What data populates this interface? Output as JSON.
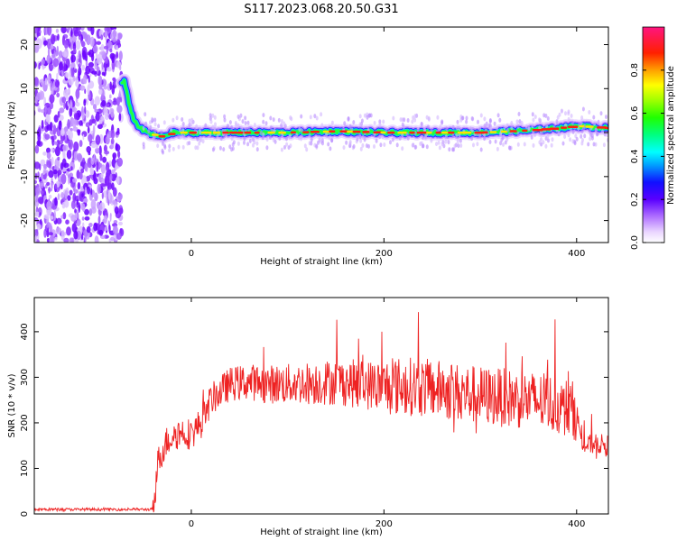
{
  "figure_title": "S117.2023.068.20.50.G31",
  "chart_data": [
    {
      "type": "heatmap",
      "title": "",
      "xlabel": "Height of straight line (km)",
      "ylabel": "Frequency (Hz)",
      "xlim": [
        -163,
        433
      ],
      "ylim": [
        -25,
        24
      ],
      "x_ticks": [
        0,
        200,
        400
      ],
      "y_ticks": [
        -20,
        -10,
        0,
        10,
        20
      ],
      "colorbar": {
        "label": "Normalized spectral amplitude",
        "range": [
          0,
          1
        ],
        "ticks": [
          0.0,
          0.2,
          0.4,
          0.6,
          0.8
        ],
        "colormap": "gist_ncar-like rainbow"
      },
      "features": {
        "noise_region_x": [
          -163,
          -72
        ],
        "signal_track": {
          "x": [
            -72,
            -70,
            -65,
            -60,
            -55,
            -50,
            -40,
            -30,
            -20,
            0,
            50,
            100,
            150,
            200,
            250,
            300,
            350,
            380,
            400,
            433
          ],
          "frequency_hz": [
            11,
            12,
            7,
            3,
            1.5,
            0.5,
            -0.5,
            -1,
            0,
            0,
            0,
            0,
            0.3,
            0,
            0,
            0,
            0.5,
            1,
            1.5,
            1
          ]
        }
      },
      "grid": false
    },
    {
      "type": "line",
      "title": "",
      "xlabel": "Height of straight line (km)",
      "ylabel": "SNR (10 * v/v)",
      "xlim": [
        -163,
        433
      ],
      "ylim": [
        0,
        475
      ],
      "x_ticks": [
        0,
        200,
        400
      ],
      "y_ticks": [
        0,
        100,
        200,
        300,
        400
      ],
      "color": "#ee2222",
      "series": [
        {
          "name": "",
          "x": [
            -163,
            -120,
            -80,
            -40,
            -38,
            -35,
            -30,
            -25,
            -20,
            -10,
            0,
            10,
            15,
            20,
            40,
            60,
            80,
            100,
            150,
            200,
            230,
            250,
            300,
            350,
            380,
            400,
            405,
            410,
            420,
            433
          ],
          "y": [
            10,
            10,
            10,
            10,
            40,
            110,
            140,
            160,
            170,
            180,
            175,
            200,
            220,
            250,
            285,
            290,
            285,
            285,
            290,
            280,
            280,
            275,
            260,
            250,
            240,
            225,
            160,
            150,
            155,
            150
          ]
        }
      ],
      "grid": false
    }
  ]
}
